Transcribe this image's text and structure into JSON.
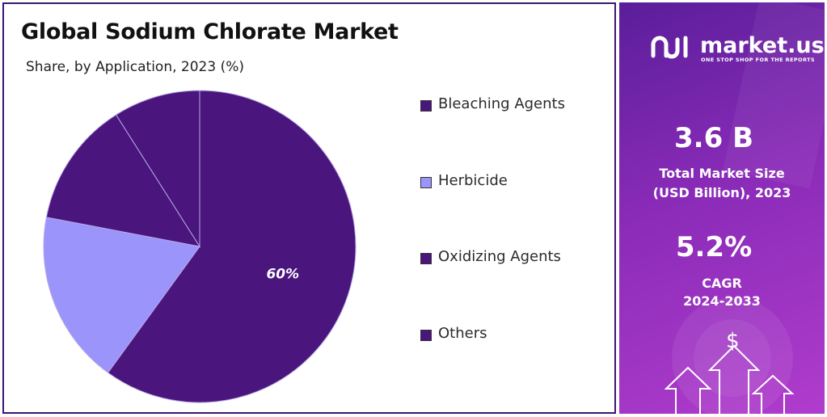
{
  "header": {
    "title": "Global Sodium Chlorate Market",
    "subtitle": "Share, by Application, 2023 (%)"
  },
  "chart_data": {
    "type": "pie",
    "title": "Global Sodium Chlorate Market",
    "subtitle": "Share, by Application, 2023 (%)",
    "categories": [
      "Bleaching Agents",
      "Herbicide",
      "Oxidizing Agents",
      "Others"
    ],
    "values": [
      60,
      18,
      13,
      9
    ],
    "colors": [
      "#4a157c",
      "#9b94fb",
      "#4a157c",
      "#4a157c"
    ],
    "data_labels": [
      "60%",
      "",
      "",
      ""
    ],
    "legend_position": "right"
  },
  "brand": {
    "name": "market.us",
    "tagline": "ONE STOP SHOP FOR THE REPORTS",
    "panel_colors": [
      "#5a1e9a",
      "#b03ccc"
    ]
  },
  "stats": {
    "market_size_value": "3.6 B",
    "market_size_label_1": "Total Market Size",
    "market_size_label_2": "(USD Billion), 2023",
    "cagr_value": "5.2%",
    "cagr_label_1": "CAGR",
    "cagr_label_2": "2024-2033",
    "currency_symbol": "$"
  }
}
